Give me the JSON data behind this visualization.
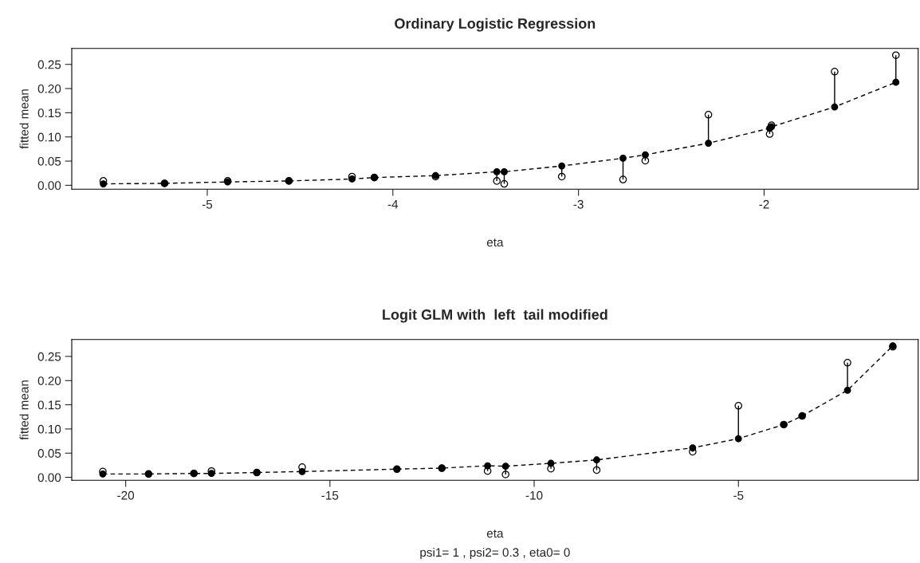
{
  "chart_data": [
    {
      "type": "line",
      "title": "Ordinary Logistic Regression",
      "xlabel": "eta",
      "ylabel": "fitted mean",
      "x": [
        -5.56,
        -5.23,
        -4.89,
        -4.56,
        -4.22,
        -4.1,
        -3.77,
        -3.44,
        -3.4,
        -3.09,
        -2.76,
        -2.64,
        -2.3,
        -1.97,
        -1.96,
        -1.62,
        -1.29
      ],
      "series": [
        {
          "color": "#000000",
          "marker": "circle",
          "line_style": "dashed",
          "values": [
            0.003,
            0.004,
            0.007,
            0.009,
            0.013,
            0.016,
            0.02,
            0.028,
            0.028,
            0.04,
            0.056,
            0.063,
            0.087,
            0.118,
            0.121,
            0.162,
            0.213
          ],
          "errors": [
            null,
            null,
            null,
            null,
            null,
            null,
            null,
            [
              0.009,
              0.028
            ],
            [
              0.003,
              0.028
            ],
            [
              0.018,
              0.04
            ],
            [
              0.012,
              0.056
            ],
            [
              0.051,
              0.063
            ],
            [
              0.087,
              0.146
            ],
            [
              0.106,
              0.118
            ],
            null,
            [
              0.162,
              0.235
            ],
            [
              0.213,
              0.269
            ]
          ]
        },
        {
          "type": "scatter",
          "color": "#000000",
          "marker": "circle",
          "values": [
            0.009,
            0.004,
            0.009,
            0.009,
            0.018,
            0.016,
            0.018,
            0.009,
            0.003,
            0.018,
            0.012,
            0.051,
            0.146,
            0.106,
            0.124,
            0.235,
            0.269
          ]
        }
      ],
      "xlim": [
        -5.73,
        -1.17
      ],
      "xticks": [
        -5,
        -4,
        -3,
        -2
      ],
      "ylim": [
        -0.008,
        0.283
      ],
      "yticks": [
        {
          "value": 0,
          "label": "0.00"
        },
        {
          "value": 0.05,
          "label": "0.05"
        },
        {
          "value": 0.1,
          "label": "0.10"
        },
        {
          "value": 0.15,
          "label": "0.15"
        },
        {
          "value": 0.2,
          "label": "0.20"
        },
        {
          "value": 0.25,
          "label": "0.25"
        }
      ],
      "grid": false,
      "legend": false
    },
    {
      "type": "line",
      "title": "Logit GLM with  left  tail modified",
      "xlabel": "eta",
      "ylabel": "fitted mean",
      "x": [
        -20.56,
        -19.44,
        -18.33,
        -17.9,
        -16.79,
        -15.68,
        -13.36,
        -12.26,
        -11.14,
        -10.7,
        -9.59,
        -8.47,
        -6.12,
        -5.0,
        -3.89,
        -3.44,
        -2.33,
        -1.22
      ],
      "series": [
        {
          "color": "#000000",
          "marker": "circle",
          "line_style": "dashed",
          "values": [
            0.007,
            0.007,
            0.008,
            0.008,
            0.01,
            0.012,
            0.017,
            0.019,
            0.024,
            0.023,
            0.029,
            0.036,
            0.061,
            0.08,
            0.109,
            0.127,
            0.18,
            0.272
          ],
          "errors": [
            null,
            null,
            null,
            null,
            null,
            null,
            null,
            null,
            [
              0.013,
              0.024
            ],
            [
              0.006,
              0.023
            ],
            [
              0.018,
              0.029
            ],
            [
              0.015,
              0.036
            ],
            [
              0.053,
              0.061
            ],
            [
              0.08,
              0.148
            ],
            null,
            null,
            [
              0.18,
              0.237
            ],
            null
          ]
        },
        {
          "type": "scatter",
          "color": "#000000",
          "marker": "circle",
          "values": [
            0.012,
            0.007,
            0.008,
            0.013,
            0.01,
            0.021,
            0.017,
            0.019,
            0.013,
            0.006,
            0.018,
            0.015,
            0.053,
            0.148,
            0.109,
            0.127,
            0.237,
            0.27
          ]
        }
      ],
      "xlim": [
        -21.32,
        -0.6
      ],
      "xticks": [
        -20,
        -15,
        -10,
        -5
      ],
      "ylim": [
        -0.006,
        0.285
      ],
      "yticks": [
        {
          "value": 0,
          "label": "0.00"
        },
        {
          "value": 0.05,
          "label": "0.05"
        },
        {
          "value": 0.1,
          "label": "0.10"
        },
        {
          "value": 0.15,
          "label": "0.15"
        },
        {
          "value": 0.2,
          "label": "0.20"
        },
        {
          "value": 0.25,
          "label": "0.25"
        }
      ],
      "grid": false,
      "legend": false,
      "annotations": [
        "psi1= 1 , psi2= 0.3 , eta0= 0"
      ]
    }
  ]
}
